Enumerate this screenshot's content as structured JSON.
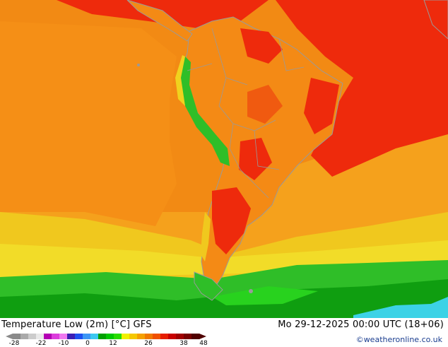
{
  "header": {
    "title": "Temperature Low (2m) [°C] GFS",
    "datetime": "Mo 29-12-2025 00:00 UTC (18+06)",
    "credit": "©weatheronline.co.uk"
  },
  "legend": {
    "ticks": [
      "-28",
      "-22",
      "-10",
      "0",
      "12",
      "26",
      "38",
      "48"
    ],
    "colors": [
      "#8a8a8a",
      "#aaaaaa",
      "#cccccc",
      "#e9e9e9",
      "#b400b4",
      "#dc3cdc",
      "#f078f0",
      "#3c1eb4",
      "#1e50f0",
      "#3c96f5",
      "#3cc8f0",
      "#00a000",
      "#00c800",
      "#28dc00",
      "#f0f000",
      "#f5c800",
      "#f5a000",
      "#f07800",
      "#f05000",
      "#e61e00",
      "#c80000",
      "#a00000",
      "#780000",
      "#500000"
    ]
  },
  "palette": {
    "ocean_warm": "#f59a1a",
    "ocean_orange": "#f27b12",
    "ocean_red": "#ee1c0c",
    "yellow": "#f0d21e",
    "green": "#2fc22a",
    "dark_green": "#0b9e10",
    "cyan": "#3cd8e6",
    "land_orange": "#f48a15",
    "borders": "#9a9a9a"
  }
}
